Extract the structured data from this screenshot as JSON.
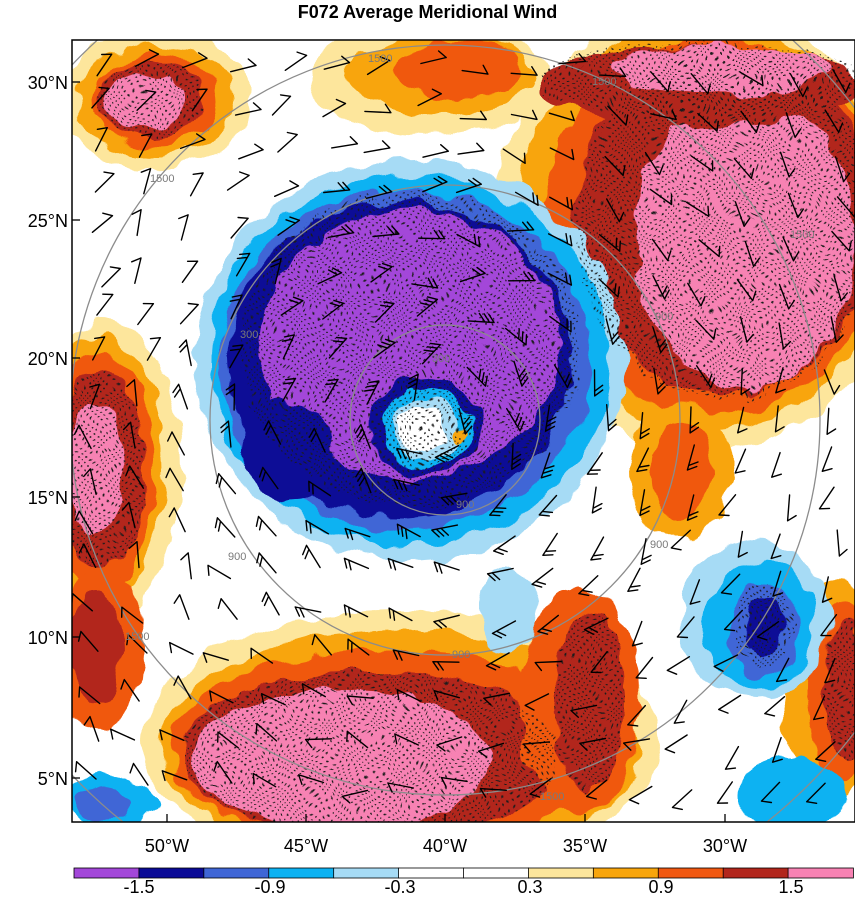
{
  "title": "F072 Average Meridional Wind",
  "lat_labels": [
    "30°N",
    "25°N",
    "20°N",
    "15°N",
    "10°N",
    "5°N"
  ],
  "lon_labels": [
    "50°W",
    "45°W",
    "40°W",
    "35°W",
    "30°W"
  ],
  "contour_labels": [
    "1500",
    "1500",
    "1500",
    "900",
    "300",
    "300",
    "900",
    "900",
    "900",
    "900",
    "1500",
    "1500",
    "1500"
  ],
  "colorbar": {
    "colors": [
      "#a347d9",
      "#0a0a96",
      "#3f66d6",
      "#0cb2f2",
      "#a6dbf5",
      "#ffffff",
      "#ffffff",
      "#fde69c",
      "#f8a50b",
      "#f05811",
      "#b2261c",
      "#f782b3"
    ],
    "tick_labels": [
      "-1.5",
      "-0.9",
      "-0.3",
      "0.3",
      "0.9",
      "1.5"
    ]
  }
}
